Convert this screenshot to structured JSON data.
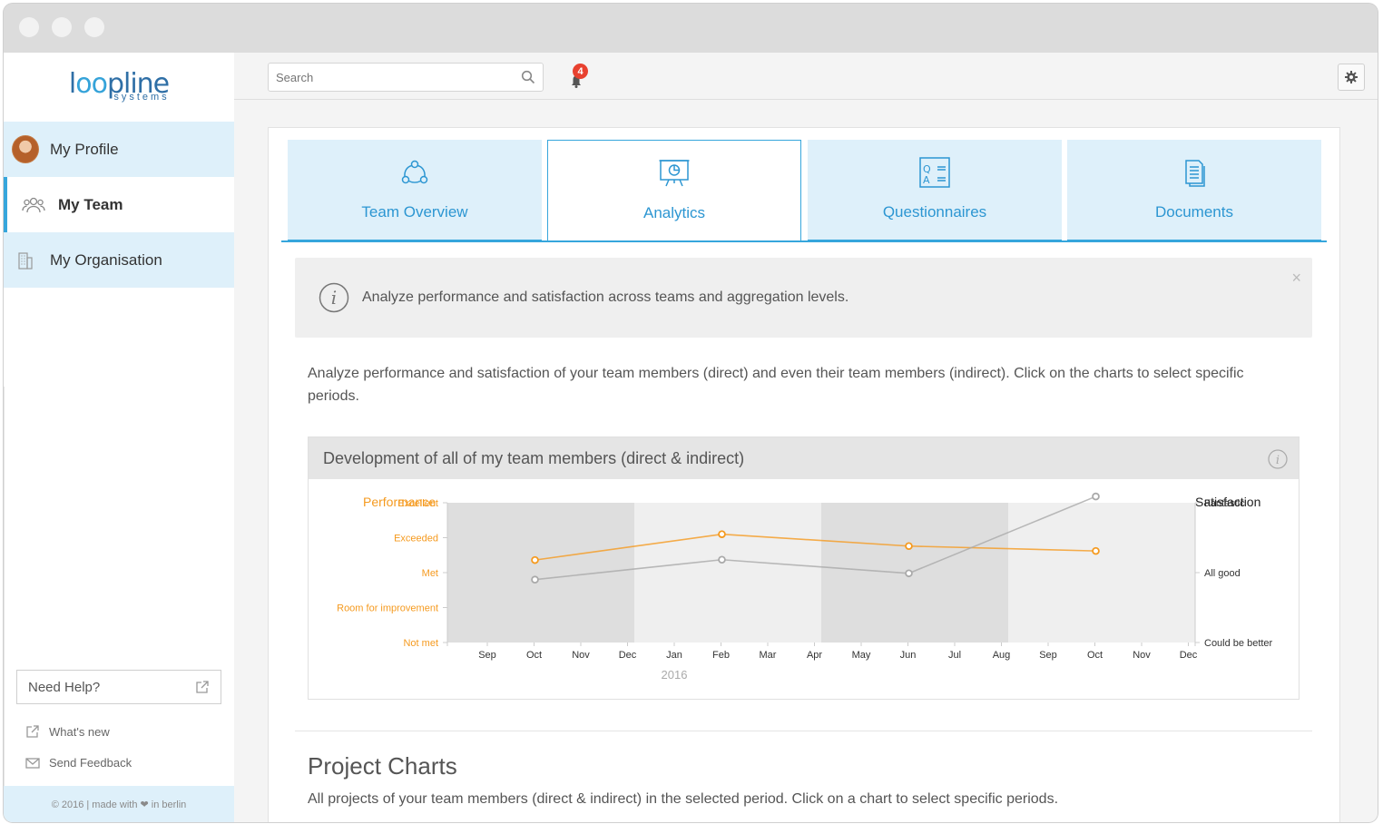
{
  "sidebar": {
    "logo": {
      "word": "loopline",
      "sub": "systems"
    },
    "items": [
      {
        "label": "My Profile"
      },
      {
        "label": "My Team"
      },
      {
        "label": "My Organisation"
      }
    ],
    "help": "Need Help?",
    "whats_new": "What's new",
    "feedback": "Send Feedback",
    "footer": "© 2016 | made with ❤ in berlin"
  },
  "topbar": {
    "search_placeholder": "Search",
    "notification_count": "4"
  },
  "tabs": [
    {
      "label": "Team Overview",
      "icon": "team-icon"
    },
    {
      "label": "Analytics",
      "icon": "analytics-icon"
    },
    {
      "label": "Questionnaires",
      "icon": "questionnaire-icon"
    },
    {
      "label": "Documents",
      "icon": "documents-icon"
    }
  ],
  "info_box": {
    "text": "Analyze performance and satisfaction across teams and aggregation levels.",
    "close": "×"
  },
  "description": "Analyze performance and satisfaction of your team members (direct) and even their team members (indirect). Click on the charts to select specific periods.",
  "chart_panel": {
    "title": "Development of all of my team members (direct & indirect)"
  },
  "chart_data": {
    "type": "line",
    "x": [
      "Sep",
      "Oct",
      "Nov",
      "Dec",
      "Jan",
      "Feb",
      "Mar",
      "Apr",
      "May",
      "Jun",
      "Jul",
      "Aug",
      "Sep",
      "Oct",
      "Nov",
      "Dec"
    ],
    "xlabel_year": "2016",
    "left_axis": {
      "label": "Performance",
      "ticks": [
        "Excellent",
        "Exceeded",
        "Met",
        "Room for improvement",
        "Not met"
      ]
    },
    "right_axis": {
      "label": "Satisfaction",
      "ticks": [
        "Fantastic",
        "All good",
        "Could be better"
      ]
    },
    "series": [
      {
        "name": "Performance",
        "color": "#f59a1f",
        "points": [
          {
            "x": "Oct",
            "y": 2.36
          },
          {
            "x": "Feb",
            "y": 3.1
          },
          {
            "x": "Jun",
            "y": 2.76
          },
          {
            "x": "Oct",
            "y": 2.62
          }
        ]
      },
      {
        "name": "Satisfaction",
        "color": "#a9a9a9",
        "points": [
          {
            "x": "Oct",
            "y": 1.8
          },
          {
            "x": "Feb",
            "y": 2.37
          },
          {
            "x": "Jun",
            "y": 1.98
          },
          {
            "x": "Oct",
            "y": 4.18
          }
        ]
      }
    ],
    "shaded_columns": [
      0,
      8
    ],
    "grid": false
  },
  "project": {
    "title": "Project Charts",
    "desc": "All projects of your team members (direct & indirect) in the selected period. Click on a chart to select specific periods."
  },
  "colors": {
    "accent": "#36a6dc",
    "tab_bg": "#def0fa",
    "orange": "#f59a1f",
    "grey_line": "#a9a9a9"
  }
}
